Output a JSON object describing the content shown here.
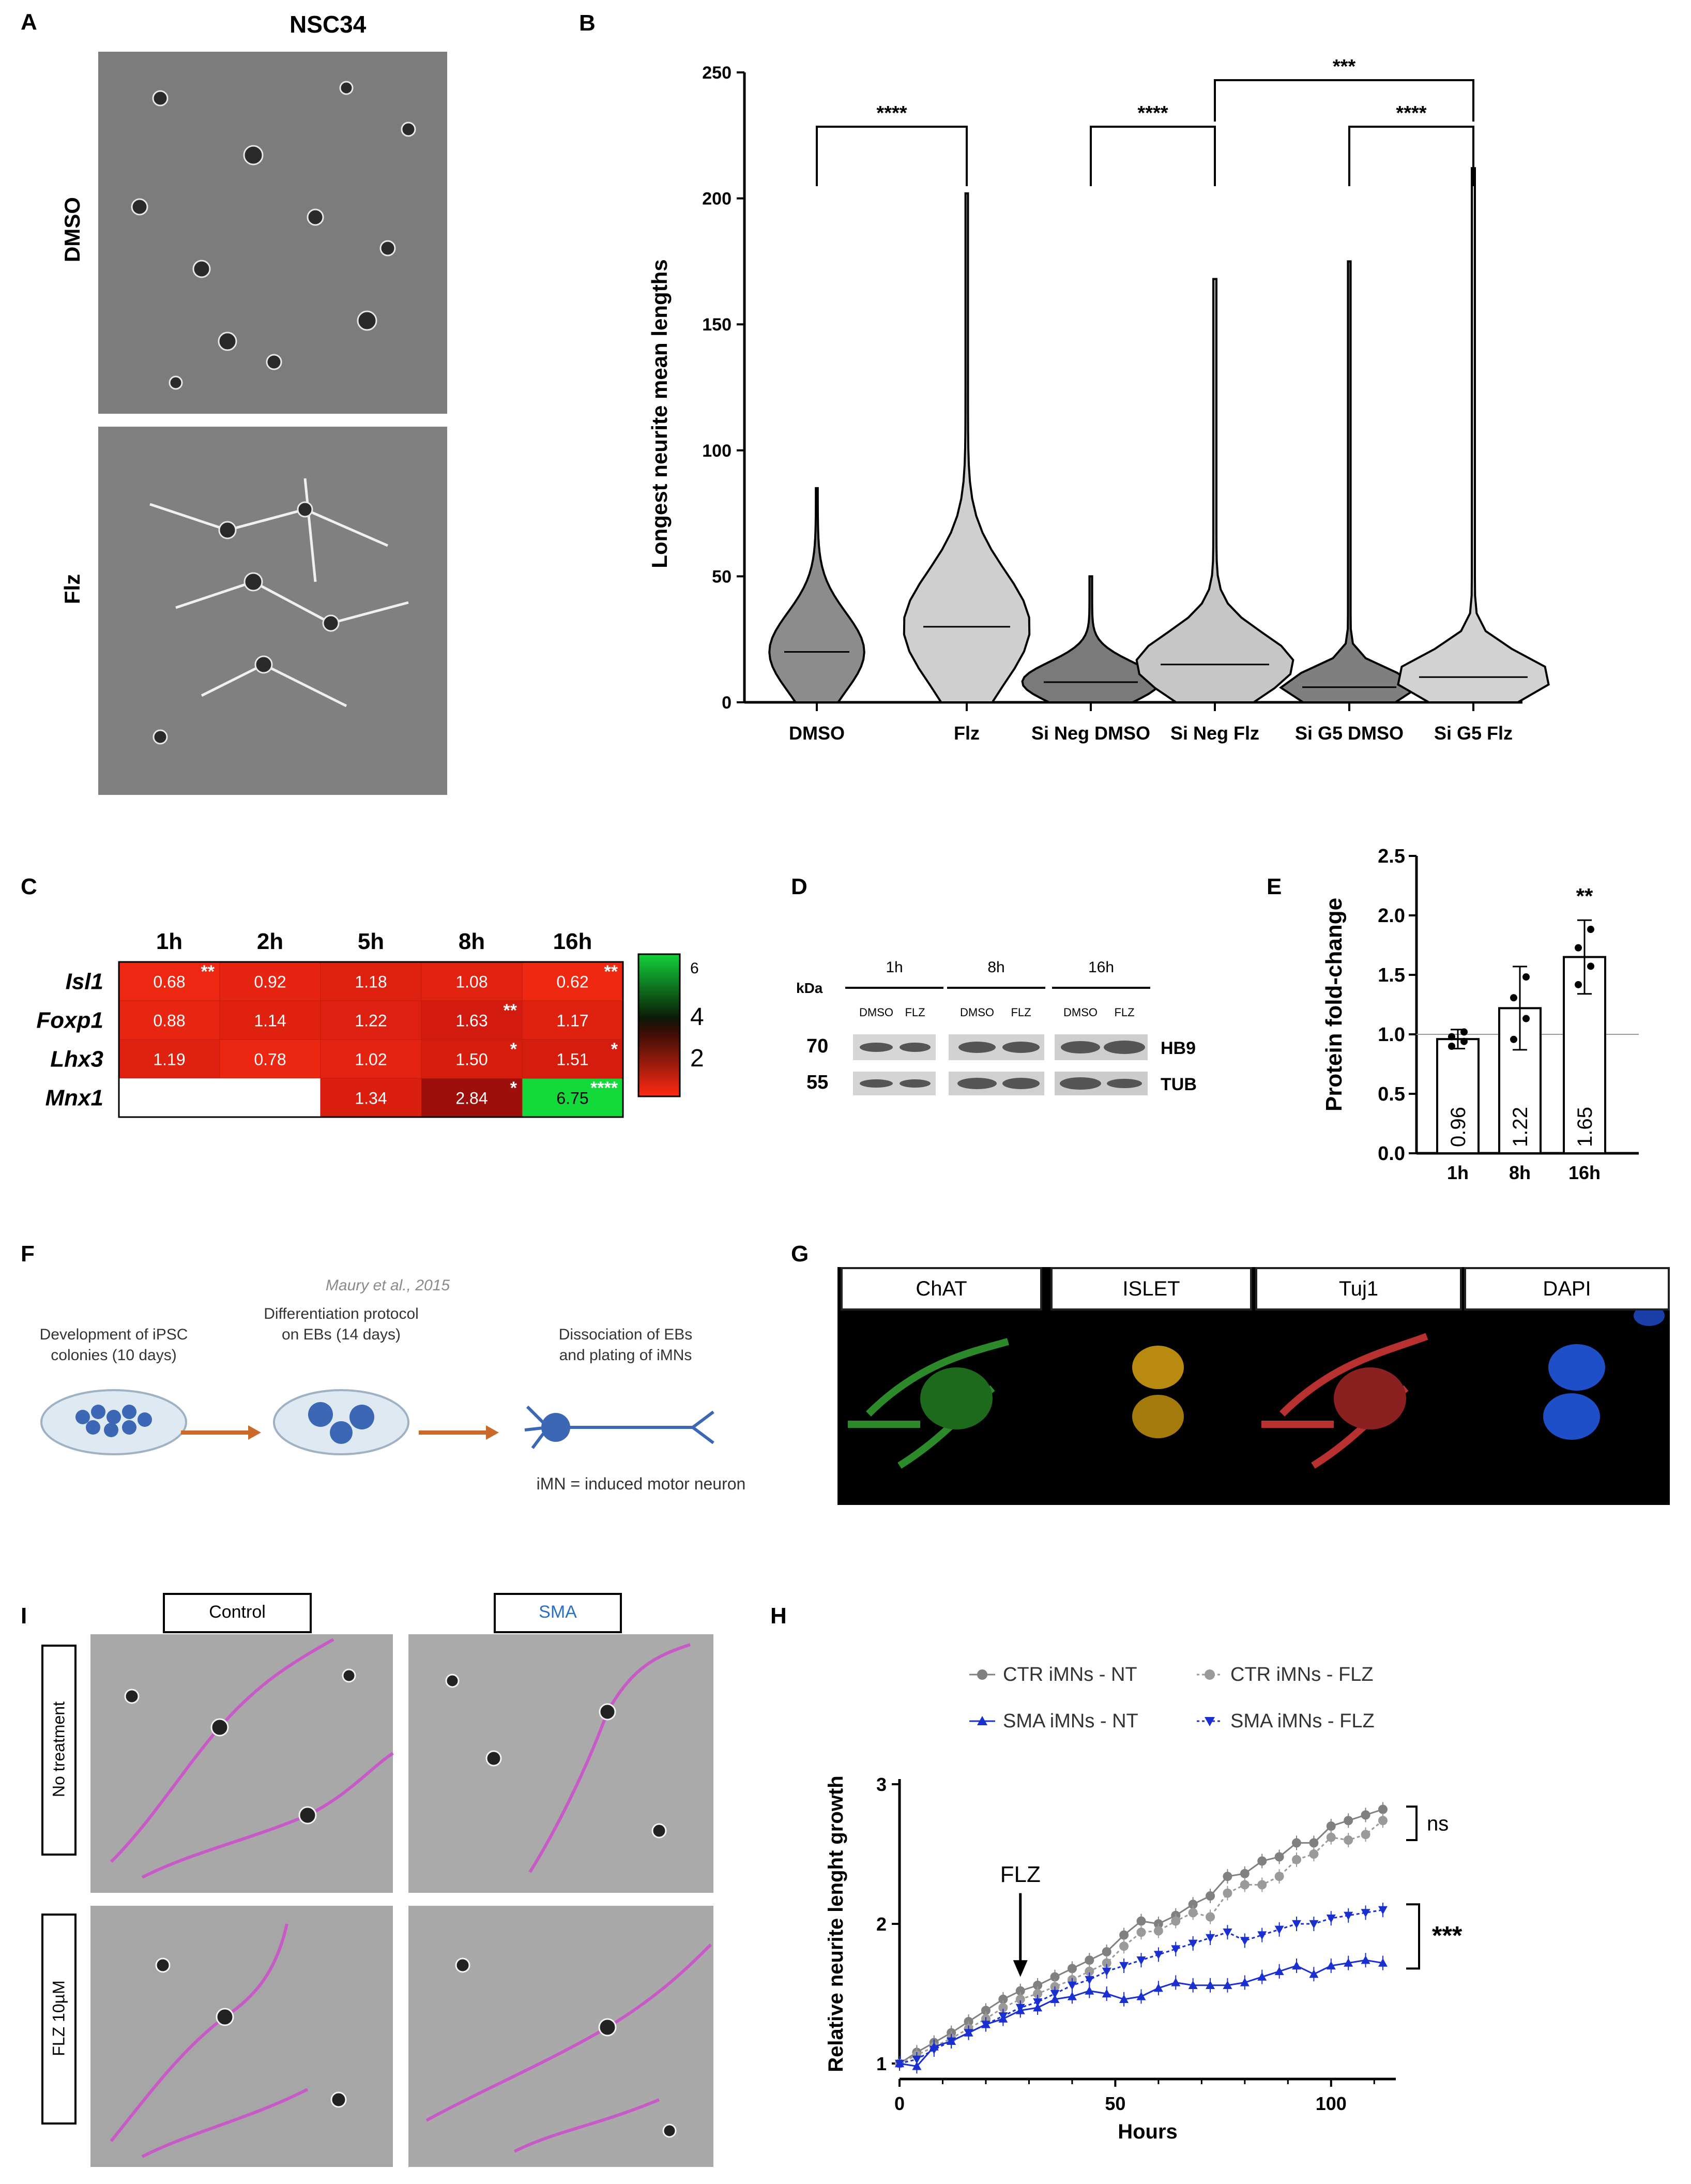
{
  "panels": {
    "A": "A",
    "B": "B",
    "C": "C",
    "D": "D",
    "E": "E",
    "F": "F",
    "G": "G",
    "H": "H",
    "I": "I"
  },
  "panelA": {
    "title": "NSC34",
    "top_label": "DMSO",
    "bottom_label": "Flz"
  },
  "panelB": {
    "ylabel": "Longest neurite mean lengths",
    "categories": [
      "DMSO",
      "Flz",
      "Si Neg DMSO",
      "Si Neg Flz",
      "Si G5 DMSO",
      "Si G5 Flz"
    ],
    "yticks": [
      "0",
      "50",
      "100",
      "150",
      "200",
      "250"
    ],
    "sig": [
      "****",
      "****",
      "***",
      "****"
    ]
  },
  "panelC": {
    "columns": [
      "1h",
      "2h",
      "5h",
      "8h",
      "16h"
    ],
    "rows": [
      "Isl1",
      "Foxp1",
      "Lhx3",
      "Mnx1"
    ],
    "cells": [
      [
        "0.68",
        "0.92",
        "1.18",
        "1.08",
        "0.62"
      ],
      [
        "0.88",
        "1.14",
        "1.22",
        "1.63",
        "1.17"
      ],
      [
        "1.19",
        "0.78",
        "1.02",
        "1.50",
        "1.51"
      ],
      [
        "",
        "",
        "1.34",
        "2.84",
        "6.75"
      ]
    ],
    "stars": [
      [
        "**",
        "",
        "",
        "",
        "**"
      ],
      [
        "",
        "",
        "",
        "**",
        ""
      ],
      [
        "",
        "",
        "",
        "*",
        "*"
      ],
      [
        "",
        "",
        "",
        "*",
        "****"
      ]
    ],
    "colorbar_ticks": [
      "6",
      "4",
      "2"
    ]
  },
  "panelD": {
    "kda": "kDa",
    "times": [
      "1h",
      "8h",
      "16h"
    ],
    "lanes": [
      "DMSO",
      "FLZ",
      "DMSO",
      "FLZ",
      "DMSO",
      "FLZ"
    ],
    "mw": [
      "70",
      "55"
    ],
    "bands": [
      "HB9",
      "TUB"
    ]
  },
  "panelE": {
    "ylabel": "Protein fold-change",
    "yticks": [
      "0.0",
      "0.5",
      "1.0",
      "1.5",
      "2.0",
      "2.5"
    ],
    "sig": "**",
    "chart_data": {
      "type": "bar",
      "categories": [
        "1h",
        "8h",
        "16h"
      ],
      "values": [
        0.96,
        1.22,
        1.65
      ],
      "value_labels": [
        "0.96",
        "1.22",
        "1.65"
      ],
      "errors": [
        0.08,
        0.35,
        0.31
      ],
      "ylim": [
        0,
        2.5
      ],
      "reference_line": 1.0
    }
  },
  "panelF": {
    "citation": "Maury et al., 2015",
    "steps": [
      "Development of iPSC colonies (10 days)",
      "Differentiation protocol on EBs (14 days)",
      "Dissociation of EBs and plating of iMNs"
    ],
    "note": "iMN = induced motor neuron",
    "colors": {
      "arrow": "#c96a2a",
      "cells": "#3b67b5"
    }
  },
  "panelG": {
    "labels": [
      "ChAT",
      "ISLET",
      "Tuj1",
      "DAPI"
    ],
    "colors": {
      "ChAT": "#2d8a2a",
      "ISLET": "#b88a10",
      "Tuj1": "#b83030",
      "DAPI": "#1f4fc8"
    }
  },
  "panelI": {
    "columns": [
      "Control",
      "SMA"
    ],
    "rows": [
      "No treatment",
      "FLZ 10µM"
    ],
    "colors": {
      "tracing": "#c85ac8",
      "sma_label": "#2a6fc8"
    }
  },
  "panelH": {
    "ylabel": "Relative neurite lenght growth",
    "xlabel": "Hours",
    "xticks": [
      "0",
      "50",
      "100"
    ],
    "yticks": [
      "1",
      "2",
      "3"
    ],
    "arrow_label": "FLZ",
    "sig_top": "ns",
    "sig_bottom": "***",
    "chart_data": {
      "type": "line",
      "x": [
        0,
        4,
        8,
        12,
        16,
        20,
        24,
        28,
        32,
        36,
        40,
        44,
        48,
        52,
        56,
        60,
        64,
        68,
        72,
        76,
        80,
        84,
        88,
        92,
        96,
        100,
        104,
        108,
        112
      ],
      "series": [
        {
          "name": "CTR iMNs - NT",
          "color": "#808080",
          "marker": "circle",
          "values": [
            1.0,
            1.08,
            1.15,
            1.22,
            1.3,
            1.38,
            1.46,
            1.52,
            1.56,
            1.62,
            1.68,
            1.74,
            1.8,
            1.92,
            2.02,
            2.0,
            2.06,
            2.14,
            2.2,
            2.34,
            2.36,
            2.45,
            2.48,
            2.58,
            2.58,
            2.7,
            2.74,
            2.78,
            2.82
          ]
        },
        {
          "name": "CTR iMNs - FLZ",
          "color": "#9a9a9a",
          "marker": "circle",
          "values": [
            1.0,
            1.06,
            1.12,
            1.18,
            1.25,
            1.32,
            1.4,
            1.46,
            1.5,
            1.55,
            1.6,
            1.66,
            1.72,
            1.84,
            1.94,
            1.95,
            2.02,
            2.08,
            2.05,
            2.22,
            2.28,
            2.28,
            2.34,
            2.46,
            2.5,
            2.62,
            2.6,
            2.64,
            2.74
          ]
        },
        {
          "name": "SMA iMNs - NT",
          "color": "#1a2fd0",
          "marker": "triangle-up",
          "values": [
            1.0,
            0.98,
            1.12,
            1.16,
            1.22,
            1.28,
            1.32,
            1.38,
            1.4,
            1.46,
            1.48,
            1.52,
            1.5,
            1.46,
            1.48,
            1.54,
            1.58,
            1.56,
            1.56,
            1.56,
            1.58,
            1.62,
            1.66,
            1.7,
            1.64,
            1.7,
            1.72,
            1.74,
            1.72
          ]
        },
        {
          "name": "SMA iMNs - FLZ",
          "color": "#1a2fd0",
          "marker": "triangle-down",
          "values": [
            1.0,
            1.03,
            1.1,
            1.16,
            1.22,
            1.28,
            1.34,
            1.4,
            1.44,
            1.5,
            1.56,
            1.6,
            1.66,
            1.7,
            1.74,
            1.78,
            1.82,
            1.86,
            1.9,
            1.94,
            1.88,
            1.92,
            1.96,
            2.0,
            2.0,
            2.04,
            2.06,
            2.08,
            2.1
          ]
        }
      ],
      "xlim": [
        0,
        115
      ],
      "ylim": [
        1,
        3
      ],
      "legend_position": "top"
    }
  }
}
